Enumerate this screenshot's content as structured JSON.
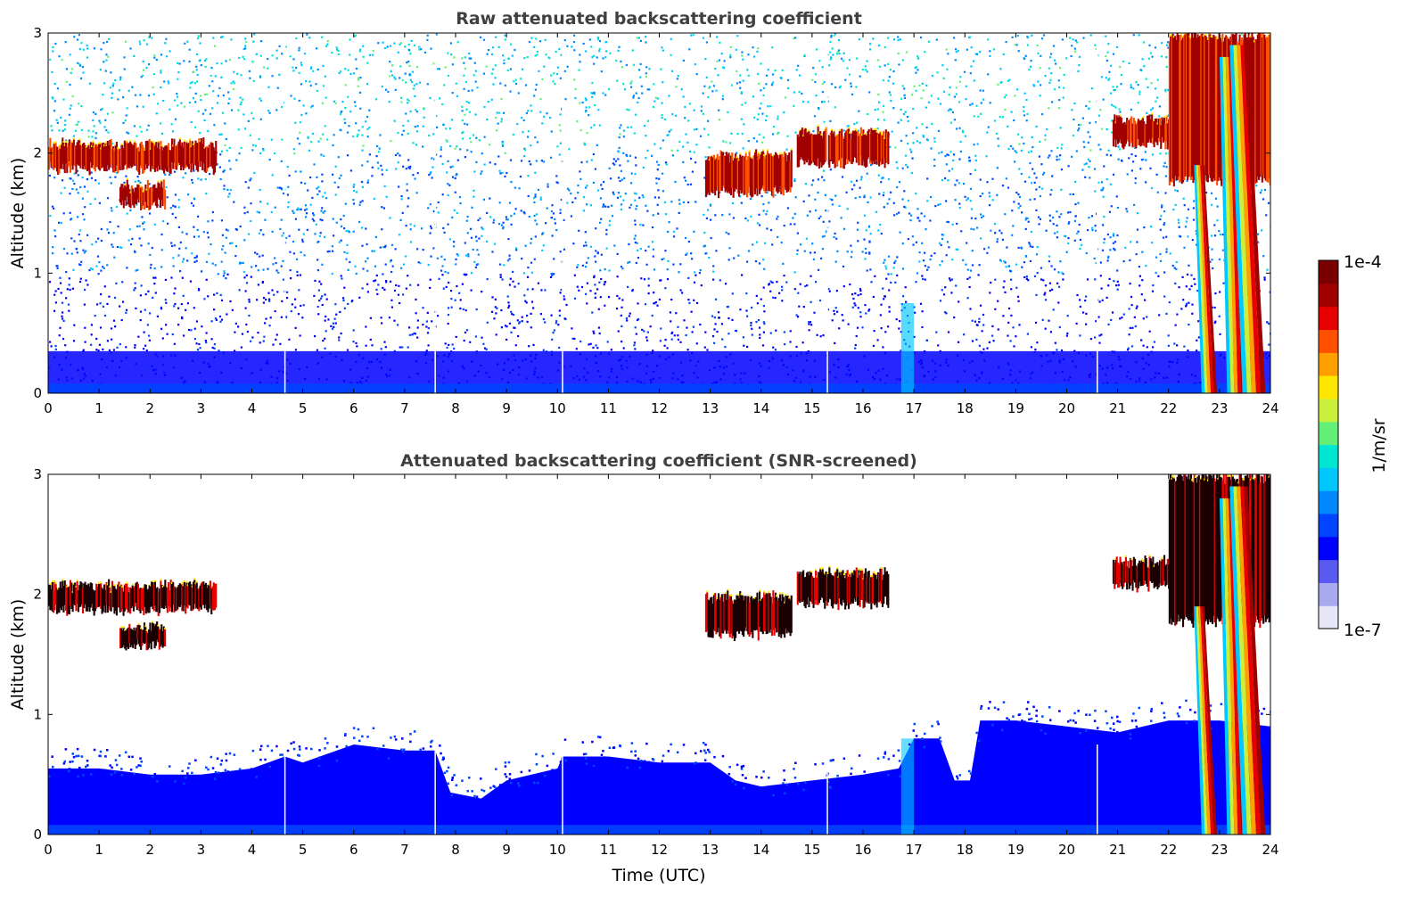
{
  "chart_data": [
    {
      "type": "heatmap",
      "title": "Raw attenuated backscattering coefficient",
      "xlabel": "",
      "ylabel": "Altitude (km)",
      "xlim": [
        0,
        24
      ],
      "ylim": [
        0,
        3
      ],
      "x_ticks": [
        "0",
        "1",
        "2",
        "3",
        "4",
        "5",
        "6",
        "7",
        "8",
        "9",
        "10",
        "11",
        "12",
        "13",
        "14",
        "15",
        "16",
        "17",
        "18",
        "19",
        "20",
        "21",
        "22",
        "23",
        "24"
      ],
      "y_ticks": [
        "0",
        "1",
        "2",
        "3"
      ],
      "x_ticks_values": [
        0,
        1,
        2,
        3,
        4,
        5,
        6,
        7,
        8,
        9,
        10,
        11,
        12,
        13,
        14,
        15,
        16,
        17,
        18,
        19,
        20,
        21,
        22,
        23,
        24
      ],
      "y_ticks_values": [
        0,
        1,
        2,
        3
      ],
      "gaps_utc": [
        4.65,
        7.6,
        10.1,
        15.3,
        20.6
      ],
      "cloud_layers": [
        {
          "t_start": 0.0,
          "t_end": 3.3,
          "alt_base_km": 1.85,
          "alt_top_km": 2.1
        },
        {
          "t_start": 1.4,
          "t_end": 2.3,
          "alt_base_km": 1.55,
          "alt_top_km": 1.75
        },
        {
          "t_start": 12.9,
          "t_end": 14.6,
          "alt_base_km": 1.65,
          "alt_top_km": 2.0
        },
        {
          "t_start": 14.7,
          "t_end": 16.5,
          "alt_base_km": 1.9,
          "alt_top_km": 2.2
        },
        {
          "t_start": 20.9,
          "t_end": 22.3,
          "alt_base_km": 2.05,
          "alt_top_km": 2.3
        },
        {
          "t_start": 22.0,
          "t_end": 24.0,
          "alt_base_km": 1.75,
          "alt_top_km": 3.0
        }
      ],
      "precipitation_streaks": [
        {
          "t_start": 22.6,
          "t_end": 22.9,
          "alt_top_km": 1.9
        },
        {
          "t_start": 23.1,
          "t_end": 23.9,
          "alt_top_km": 2.8
        }
      ]
    },
    {
      "type": "heatmap",
      "title": "Attenuated backscattering coefficient (SNR-screened)",
      "xlabel": "Time (UTC)",
      "ylabel": "Altitude (km)",
      "xlim": [
        0,
        24
      ],
      "ylim": [
        0,
        3
      ],
      "x_ticks": [
        "0",
        "1",
        "2",
        "3",
        "4",
        "5",
        "6",
        "7",
        "8",
        "9",
        "10",
        "11",
        "12",
        "13",
        "14",
        "15",
        "16",
        "17",
        "18",
        "19",
        "20",
        "21",
        "22",
        "23",
        "24"
      ],
      "y_ticks": [
        "0",
        "1",
        "2",
        "3"
      ],
      "x_ticks_values": [
        0,
        1,
        2,
        3,
        4,
        5,
        6,
        7,
        8,
        9,
        10,
        11,
        12,
        13,
        14,
        15,
        16,
        17,
        18,
        19,
        20,
        21,
        22,
        23,
        24
      ],
      "y_ticks_values": [
        0,
        1,
        2,
        3
      ],
      "boundary_layer_top_km": [
        [
          0,
          0.55
        ],
        [
          1,
          0.55
        ],
        [
          2,
          0.5
        ],
        [
          3,
          0.5
        ],
        [
          4,
          0.55
        ],
        [
          4.65,
          0.65
        ],
        [
          5,
          0.6
        ],
        [
          6,
          0.75
        ],
        [
          7,
          0.7
        ],
        [
          7.6,
          0.7
        ],
        [
          7.9,
          0.35
        ],
        [
          8.5,
          0.3
        ],
        [
          9,
          0.45
        ],
        [
          10,
          0.55
        ],
        [
          10.1,
          0.65
        ],
        [
          11,
          0.65
        ],
        [
          12,
          0.6
        ],
        [
          13,
          0.6
        ],
        [
          13.5,
          0.45
        ],
        [
          14,
          0.4
        ],
        [
          15,
          0.45
        ],
        [
          16,
          0.5
        ],
        [
          16.7,
          0.55
        ],
        [
          17,
          0.8
        ],
        [
          17.5,
          0.8
        ],
        [
          17.8,
          0.45
        ],
        [
          18.1,
          0.45
        ],
        [
          18.3,
          0.95
        ],
        [
          19,
          0.95
        ],
        [
          20,
          0.9
        ],
        [
          21,
          0.85
        ],
        [
          22,
          0.95
        ],
        [
          23,
          0.95
        ],
        [
          24,
          0.9
        ]
      ],
      "cloud_layers": [
        {
          "t_start": 0.0,
          "t_end": 3.3,
          "alt_base_km": 1.85,
          "alt_top_km": 2.1
        },
        {
          "t_start": 1.4,
          "t_end": 2.3,
          "alt_base_km": 1.55,
          "alt_top_km": 1.75
        },
        {
          "t_start": 12.9,
          "t_end": 14.6,
          "alt_base_km": 1.65,
          "alt_top_km": 2.0
        },
        {
          "t_start": 14.7,
          "t_end": 16.5,
          "alt_base_km": 1.9,
          "alt_top_km": 2.2
        },
        {
          "t_start": 20.9,
          "t_end": 22.3,
          "alt_base_km": 2.05,
          "alt_top_km": 2.3
        },
        {
          "t_start": 22.0,
          "t_end": 24.0,
          "alt_base_km": 1.75,
          "alt_top_km": 3.0
        }
      ]
    }
  ],
  "colorbar": {
    "label": "1/m/sr",
    "max_label": "1e-4",
    "min_label": "1e-7",
    "colors": [
      "#e6e6f7",
      "#a9a9ef",
      "#5a5af0",
      "#0000ff",
      "#0044ff",
      "#0088ff",
      "#00c8ff",
      "#00e6d2",
      "#64f078",
      "#c8f03c",
      "#ffe600",
      "#ffa000",
      "#ff5000",
      "#e60000",
      "#a00000",
      "#7a0000"
    ]
  }
}
